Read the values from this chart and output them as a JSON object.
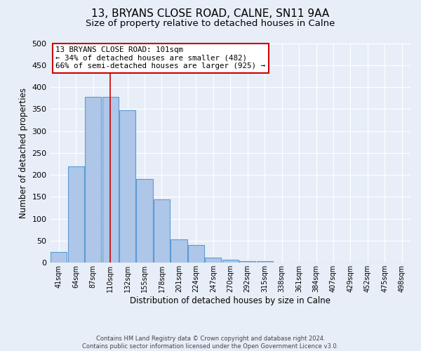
{
  "title": "13, BRYANS CLOSE ROAD, CALNE, SN11 9AA",
  "subtitle": "Size of property relative to detached houses in Calne",
  "xlabel": "Distribution of detached houses by size in Calne",
  "ylabel": "Number of detached properties",
  "bar_labels": [
    "41sqm",
    "64sqm",
    "87sqm",
    "110sqm",
    "132sqm",
    "155sqm",
    "178sqm",
    "201sqm",
    "224sqm",
    "247sqm",
    "270sqm",
    "292sqm",
    "315sqm",
    "338sqm",
    "361sqm",
    "384sqm",
    "407sqm",
    "429sqm",
    "452sqm",
    "475sqm",
    "498sqm"
  ],
  "bar_heights": [
    25,
    220,
    378,
    378,
    348,
    190,
    145,
    53,
    40,
    12,
    7,
    4,
    4,
    1,
    1,
    1,
    1,
    1,
    1,
    1,
    1
  ],
  "bar_color": "#aec6e8",
  "bar_edgecolor": "#5b9bd5",
  "ylim": [
    0,
    500
  ],
  "yticks": [
    0,
    50,
    100,
    150,
    200,
    250,
    300,
    350,
    400,
    450,
    500
  ],
  "vline_color": "#cc0000",
  "annotation_title": "13 BRYANS CLOSE ROAD: 101sqm",
  "annotation_line1": "← 34% of detached houses are smaller (482)",
  "annotation_line2": "66% of semi-detached houses are larger (925) →",
  "annotation_box_color": "#cc0000",
  "footer_line1": "Contains HM Land Registry data © Crown copyright and database right 2024.",
  "footer_line2": "Contains public sector information licensed under the Open Government Licence v3.0.",
  "bg_color": "#e8eef7",
  "plot_bg_color": "#e8eef7",
  "grid_color": "#ffffff",
  "title_fontsize": 11,
  "subtitle_fontsize": 9.5
}
